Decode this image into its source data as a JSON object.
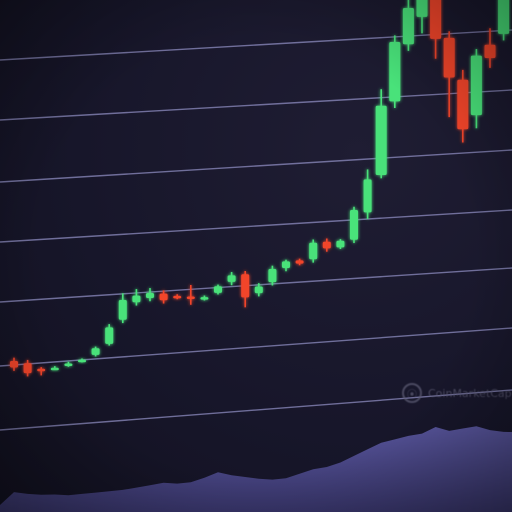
{
  "watermark": {
    "text": "CoinMarketCap",
    "icon": "coin-logo-icon"
  },
  "colors": {
    "background": "#17162a",
    "gridline": "#8e8cc0",
    "up": "#48e27a",
    "down": "#f2452c",
    "volume_fill": "#4a4780"
  },
  "chart_data": {
    "type": "candlestick",
    "title": "",
    "xlabel": "",
    "ylabel": "",
    "grid": true,
    "legend": "none",
    "ylim": [
      0,
      100
    ],
    "candles": [
      {
        "o": 10.0,
        "c": 8.0,
        "h": 11.0,
        "l": 7.0
      },
      {
        "o": 9.0,
        "c": 6.0,
        "h": 10.0,
        "l": 5.0
      },
      {
        "o": 7.0,
        "c": 6.5,
        "h": 7.5,
        "l": 5.0
      },
      {
        "o": 7.0,
        "c": 7.0,
        "h": 7.5,
        "l": 6.5
      },
      {
        "o": 7.5,
        "c": 8.0,
        "h": 8.5,
        "l": 7.0
      },
      {
        "o": 8.5,
        "c": 8.8,
        "h": 9.2,
        "l": 8.0
      },
      {
        "o": 10.0,
        "c": 12.0,
        "h": 12.5,
        "l": 9.5
      },
      {
        "o": 13.0,
        "c": 18.0,
        "h": 19.0,
        "l": 12.5
      },
      {
        "o": 20.0,
        "c": 26.0,
        "h": 28.0,
        "l": 19.0
      },
      {
        "o": 25.0,
        "c": 27.0,
        "h": 29.0,
        "l": 24.0
      },
      {
        "o": 26.0,
        "c": 27.5,
        "h": 29.0,
        "l": 25.0
      },
      {
        "o": 27.0,
        "c": 25.0,
        "h": 28.0,
        "l": 24.0
      },
      {
        "o": 26.0,
        "c": 25.5,
        "h": 26.5,
        "l": 25.0
      },
      {
        "o": 25.5,
        "c": 25.0,
        "h": 29.0,
        "l": 23.0
      },
      {
        "o": 25.0,
        "c": 25.0,
        "h": 25.5,
        "l": 24.0
      },
      {
        "o": 26.0,
        "c": 28.0,
        "h": 28.5,
        "l": 25.5
      },
      {
        "o": 29.0,
        "c": 31.0,
        "h": 32.0,
        "l": 28.0
      },
      {
        "o": 31.0,
        "c": 24.0,
        "h": 32.0,
        "l": 21.0
      },
      {
        "o": 25.0,
        "c": 27.0,
        "h": 28.0,
        "l": 24.0
      },
      {
        "o": 28.0,
        "c": 32.0,
        "h": 33.0,
        "l": 27.0
      },
      {
        "o": 32.0,
        "c": 34.0,
        "h": 34.5,
        "l": 31.0
      },
      {
        "o": 34.0,
        "c": 33.0,
        "h": 34.5,
        "l": 32.5
      },
      {
        "o": 34.0,
        "c": 39.0,
        "h": 40.0,
        "l": 33.0
      },
      {
        "o": 39.0,
        "c": 37.0,
        "h": 40.0,
        "l": 36.0
      },
      {
        "o": 37.0,
        "c": 39.0,
        "h": 39.5,
        "l": 36.5
      },
      {
        "o": 39.0,
        "c": 48.0,
        "h": 49.0,
        "l": 38.0
      },
      {
        "o": 47.0,
        "c": 57.0,
        "h": 60.0,
        "l": 45.0
      },
      {
        "o": 58.0,
        "c": 79.0,
        "h": 84.0,
        "l": 57.0
      },
      {
        "o": 80.0,
        "c": 98.0,
        "h": 100.0,
        "l": 78.0
      },
      {
        "o": 97.0,
        "c": 108.0,
        "h": 115.0,
        "l": 95.0
      },
      {
        "o": 105.0,
        "c": 115.0,
        "h": 120.0,
        "l": 100.0
      },
      {
        "o": 118.0,
        "c": 98.0,
        "h": 120.0,
        "l": 92.0
      },
      {
        "o": 98.0,
        "c": 86.0,
        "h": 100.0,
        "l": 74.0
      },
      {
        "o": 85.0,
        "c": 70.0,
        "h": 88.0,
        "l": 66.0
      },
      {
        "o": 74.0,
        "c": 92.0,
        "h": 94.0,
        "l": 70.0
      },
      {
        "o": 95.0,
        "c": 91.0,
        "h": 100.0,
        "l": 88.0
      },
      {
        "o": 98.0,
        "c": 118.0,
        "h": 122.0,
        "l": 96.0
      }
    ],
    "volume": [
      12,
      10,
      9,
      9,
      8,
      9,
      10,
      11,
      12,
      14,
      16,
      18,
      17,
      18,
      22,
      27,
      24,
      22,
      20,
      19,
      20,
      24,
      28,
      30,
      34,
      40,
      46,
      52,
      55,
      58,
      60,
      66,
      62,
      64,
      66,
      62,
      60
    ]
  }
}
